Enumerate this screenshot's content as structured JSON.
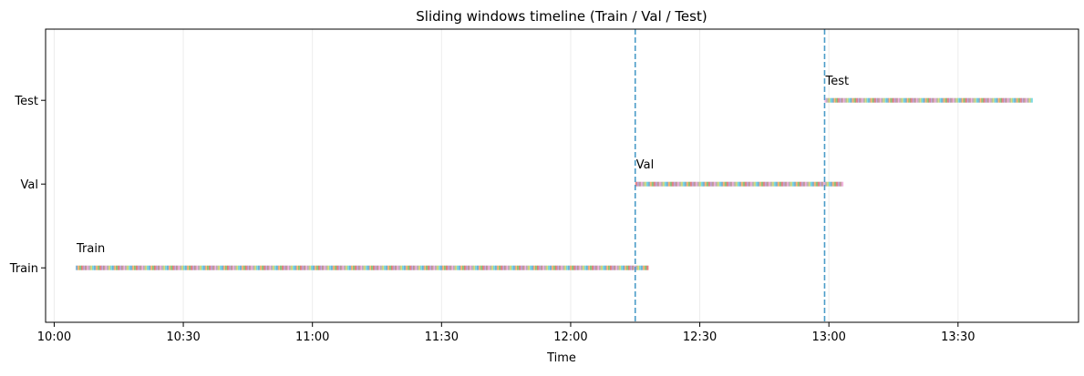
{
  "chart_data": {
    "type": "timeline",
    "title": "Sliding windows timeline (Train / Val / Test)",
    "xlabel": "Time",
    "ylabel": "",
    "x_range": [
      "09:58",
      "13:58"
    ],
    "x_ticks": [
      "10:00",
      "10:30",
      "11:00",
      "11:30",
      "12:00",
      "12:30",
      "13:00",
      "13:30"
    ],
    "categories": [
      "Train",
      "Val",
      "Test"
    ],
    "y_range": [
      -0.65,
      2.85
    ],
    "grid": "x-axis only",
    "series": [
      {
        "name": "Train",
        "start": "10:05",
        "end": "12:18",
        "label_at": "10:05"
      },
      {
        "name": "Val",
        "start": "12:15",
        "end": "13:03",
        "label_at": "12:15"
      },
      {
        "name": "Test",
        "start": "12:59",
        "end": "13:47",
        "label_at": "12:59"
      }
    ],
    "split_lines": [
      "12:15",
      "12:59"
    ],
    "colors": {
      "split_line": "#4a9cc8",
      "grid": "#ececec",
      "bar_palette": [
        "#1f77b4",
        "#ff7f0e",
        "#2ca02c",
        "#d62728",
        "#9467bd",
        "#8c564b",
        "#e377c2",
        "#7f7f7f",
        "#bcbd22",
        "#17becf"
      ]
    }
  }
}
